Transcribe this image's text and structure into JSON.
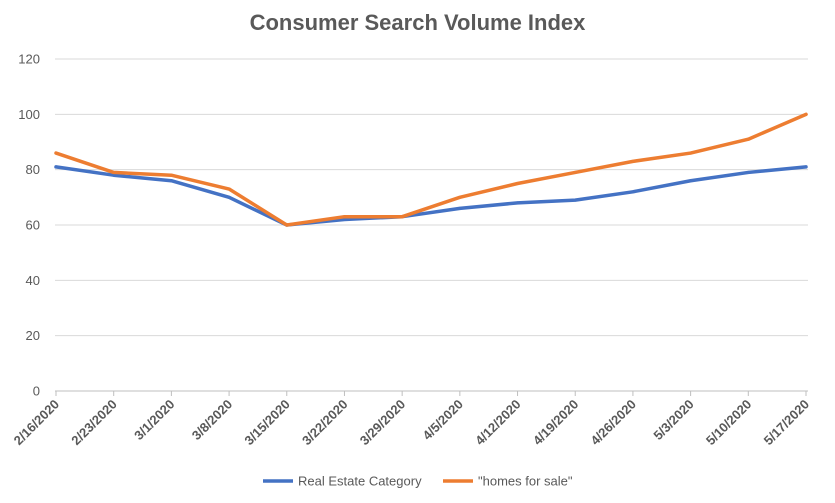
{
  "chart_data": {
    "type": "line",
    "title": "Consumer Search Volume Index",
    "xlabel": "",
    "ylabel": "",
    "ylim": [
      0,
      120
    ],
    "yticks": [
      0,
      20,
      40,
      60,
      80,
      100,
      120
    ],
    "grid": true,
    "legend_position": "bottom",
    "categories": [
      "2/16/2020",
      "2/23/2020",
      "3/1/2020",
      "3/8/2020",
      "3/15/2020",
      "3/22/2020",
      "3/29/2020",
      "4/5/2020",
      "4/12/2020",
      "4/19/2020",
      "4/26/2020",
      "5/3/2020",
      "5/10/2020",
      "5/17/2020"
    ],
    "series": [
      {
        "name": "Real Estate Category",
        "color": "#4472c4",
        "values": [
          81,
          78,
          76,
          70,
          60,
          62,
          63,
          66,
          68,
          69,
          72,
          76,
          79,
          81
        ]
      },
      {
        "name": "\"homes for sale\"",
        "color": "#ed7d31",
        "values": [
          86,
          79,
          78,
          73,
          60,
          63,
          63,
          70,
          75,
          79,
          83,
          86,
          91,
          100
        ]
      }
    ]
  }
}
